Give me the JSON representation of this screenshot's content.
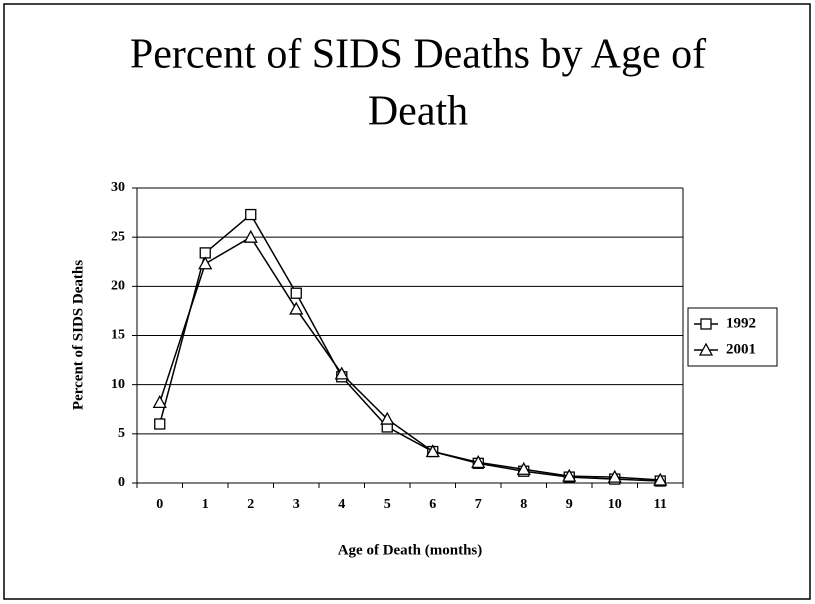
{
  "chart_data": {
    "type": "line",
    "title_lines": [
      "Percent of SIDS Deaths by Age of",
      "Death"
    ],
    "x_label": "Age of Death (months)",
    "y_label": "Percent of SIDS Deaths",
    "categories": [
      "0",
      "1",
      "2",
      "3",
      "4",
      "5",
      "6",
      "7",
      "8",
      "9",
      "10",
      "11"
    ],
    "series": [
      {
        "name": "1992",
        "color": "#000000",
        "marker": "square",
        "values": [
          6.0,
          23.4,
          27.3,
          19.3,
          10.8,
          5.7,
          3.2,
          2.0,
          1.2,
          0.6,
          0.4,
          0.2
        ]
      },
      {
        "name": "2001",
        "color": "#000000",
        "marker": "triangle",
        "values": [
          8.2,
          22.3,
          25.0,
          17.7,
          11.1,
          6.5,
          3.2,
          2.1,
          1.4,
          0.7,
          0.6,
          0.3
        ]
      }
    ],
    "ylim": [
      0,
      30
    ],
    "yticks": [
      0,
      5,
      10,
      15,
      20,
      25,
      30
    ],
    "grid": true,
    "legend": "right"
  }
}
